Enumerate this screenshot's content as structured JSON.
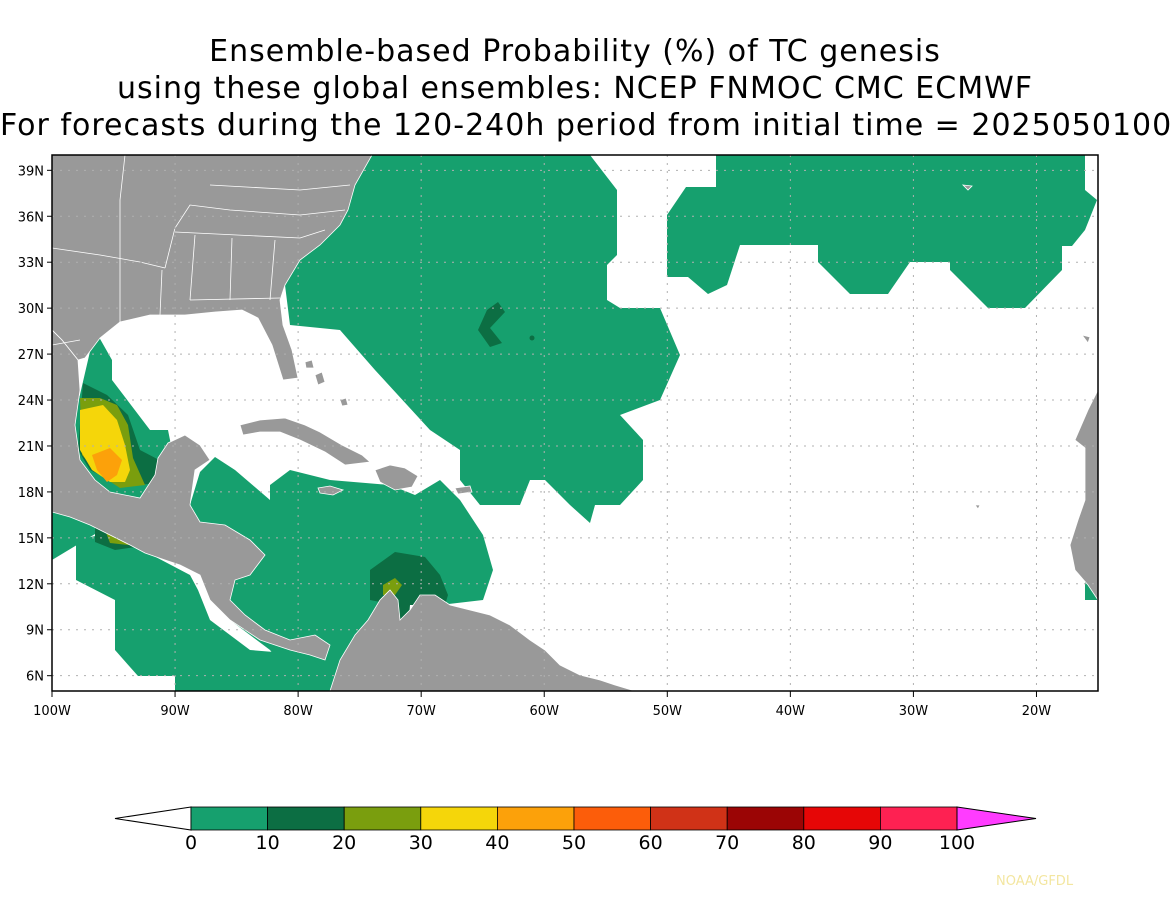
{
  "title": {
    "line1": "Ensemble-based Probability (%) of TC genesis",
    "line2": "using these global ensembles:   NCEP FNMOC CMC ECMWF",
    "line3": "For forecasts during the 120-240h period from initial time = 2025050100"
  },
  "map": {
    "lon_range": [
      -100,
      -15
    ],
    "lat_range": [
      5,
      40
    ],
    "lon_ticks": [
      {
        "value": -100,
        "label": "100W"
      },
      {
        "value": -90,
        "label": "90W"
      },
      {
        "value": -80,
        "label": "80W"
      },
      {
        "value": -70,
        "label": "70W"
      },
      {
        "value": -60,
        "label": "60W"
      },
      {
        "value": -50,
        "label": "50W"
      },
      {
        "value": -40,
        "label": "40W"
      },
      {
        "value": -30,
        "label": "30W"
      },
      {
        "value": -20,
        "label": "20W"
      }
    ],
    "lat_ticks": [
      {
        "value": 39,
        "label": "39N"
      },
      {
        "value": 36,
        "label": "36N"
      },
      {
        "value": 33,
        "label": "33N"
      },
      {
        "value": 30,
        "label": "30N"
      },
      {
        "value": 27,
        "label": "27N"
      },
      {
        "value": 24,
        "label": "24N"
      },
      {
        "value": 21,
        "label": "21N"
      },
      {
        "value": 18,
        "label": "18N"
      },
      {
        "value": 15,
        "label": "15N"
      },
      {
        "value": 12,
        "label": "12N"
      },
      {
        "value": 9,
        "label": "9N"
      },
      {
        "value": 6,
        "label": "6N"
      }
    ],
    "land_color": "#999999",
    "ocean_color": "#ffffff",
    "gridlines": "dotted"
  },
  "colorbar": {
    "labels": [
      "0",
      "10",
      "20",
      "30",
      "40",
      "50",
      "60",
      "70",
      "80",
      "90",
      "100"
    ],
    "colors": [
      "#16a06e",
      "#0c6e43",
      "#7a9e0e",
      "#f5d60a",
      "#fca10a",
      "#fc5d0a",
      "#d03217",
      "#9b0505",
      "#e60606",
      "#fe2152"
    ],
    "under_color": "#ffffff",
    "over_color": "#ff3cff"
  },
  "credit": "NOAA/GFDL"
}
